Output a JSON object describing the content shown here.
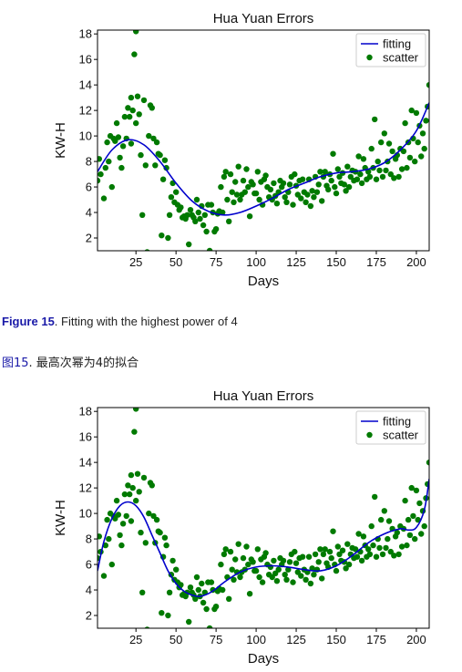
{
  "captions": {
    "en_prefix": "Figure 15",
    "en_text": ". Fitting with the highest power of 4",
    "zh_prefix": "图15",
    "zh_text": ". 最高次幂为4的拟合"
  },
  "chart_data": [
    {
      "type": "scatter",
      "title": "Hua Yuan Errors",
      "xlabel": "Days",
      "ylabel": "KW-H",
      "xlim": [
        1,
        208
      ],
      "ylim": [
        1,
        18.3
      ],
      "xticks": [
        25,
        50,
        75,
        100,
        125,
        150,
        175,
        200
      ],
      "yticks": [
        2,
        4,
        6,
        8,
        10,
        12,
        14,
        16,
        18
      ],
      "legend": {
        "position": "top-right",
        "entries": [
          "fitting",
          "scatter"
        ]
      },
      "colors": {
        "fitting": "#0000cc",
        "scatter": "#007a00"
      },
      "series": [
        {
          "name": "fitting",
          "x": [
            1,
            10,
            20,
            30,
            40,
            50,
            60,
            70,
            80,
            90,
            100,
            110,
            120,
            130,
            140,
            150,
            160,
            170,
            180,
            190,
            200,
            208
          ],
          "y": [
            7.2,
            8.9,
            9.7,
            9.3,
            8.0,
            6.3,
            4.9,
            4.1,
            3.8,
            4.0,
            4.5,
            5.1,
            5.8,
            6.3,
            6.8,
            7.1,
            7.2,
            7.4,
            7.9,
            8.9,
            10.4,
            12.6
          ]
        },
        {
          "name": "scatter",
          "x": [
            1,
            2,
            3,
            5,
            6,
            7,
            8,
            9,
            10,
            11,
            12,
            13,
            14,
            15,
            16,
            17,
            18,
            19,
            20,
            21,
            22,
            22,
            23,
            24,
            25,
            25,
            26,
            27,
            28,
            29,
            30,
            31,
            32,
            33,
            34,
            35,
            36,
            37,
            38,
            39,
            40,
            41,
            42,
            43,
            44,
            45,
            46,
            47,
            48,
            49,
            50,
            51,
            52,
            53,
            54,
            55,
            56,
            57,
            58,
            59,
            60,
            61,
            62,
            63,
            64,
            65,
            66,
            67,
            68,
            69,
            70,
            71,
            72,
            73,
            74,
            75,
            76,
            77,
            78,
            79,
            80,
            81,
            82,
            83,
            84,
            85,
            86,
            87,
            88,
            89,
            90,
            91,
            92,
            93,
            94,
            95,
            96,
            97,
            98,
            99,
            100,
            101,
            102,
            103,
            104,
            105,
            106,
            107,
            108,
            109,
            110,
            111,
            112,
            113,
            114,
            115,
            116,
            117,
            118,
            119,
            120,
            121,
            122,
            123,
            124,
            125,
            126,
            127,
            128,
            129,
            130,
            131,
            132,
            133,
            134,
            135,
            136,
            137,
            138,
            139,
            140,
            141,
            142,
            143,
            144,
            145,
            146,
            147,
            148,
            149,
            150,
            151,
            152,
            153,
            154,
            155,
            156,
            157,
            158,
            159,
            160,
            161,
            162,
            163,
            164,
            165,
            166,
            167,
            168,
            169,
            170,
            171,
            172,
            173,
            174,
            175,
            176,
            177,
            178,
            179,
            180,
            181,
            182,
            183,
            184,
            185,
            186,
            187,
            188,
            189,
            190,
            191,
            192,
            193,
            194,
            195,
            196,
            197,
            198,
            199,
            200,
            201,
            202,
            203,
            204,
            205,
            206,
            207,
            208
          ],
          "y": [
            6.5,
            8.2,
            7.0,
            5.1,
            7.5,
            9.5,
            8.0,
            10.0,
            6.0,
            9.8,
            9.6,
            11.0,
            9.9,
            8.3,
            7.5,
            9.2,
            11.5,
            9.8,
            12.2,
            11.5,
            9.4,
            13.0,
            12.0,
            16.4,
            18.2,
            11.0,
            13.1,
            11.7,
            8.5,
            3.8,
            12.8,
            7.7,
            0.9,
            10.0,
            12.4,
            12.2,
            9.8,
            7.7,
            9.5,
            8.6,
            8.5,
            2.2,
            6.6,
            8.1,
            7.5,
            2.0,
            3.8,
            5.2,
            6.3,
            4.8,
            5.6,
            4.6,
            4.2,
            4.4,
            3.6,
            3.7,
            3.5,
            3.8,
            1.5,
            4.2,
            3.8,
            3.6,
            3.3,
            5.0,
            4.0,
            3.5,
            4.5,
            3.0,
            3.8,
            2.5,
            4.6,
            1.0,
            4.6,
            4.0,
            2.5,
            2.7,
            3.9,
            4.1,
            6.0,
            4.0,
            6.8,
            7.2,
            5.0,
            3.3,
            7.0,
            5.6,
            4.8,
            6.4,
            5.4,
            7.6,
            5.0,
            5.4,
            6.5,
            5.6,
            7.4,
            6.0,
            3.7,
            6.4,
            6.2,
            5.5,
            5.5,
            7.2,
            5.0,
            6.4,
            4.6,
            6.6,
            6.9,
            6.0,
            5.2,
            5.8,
            5.0,
            6.3,
            5.3,
            4.7,
            5.6,
            6.5,
            6.0,
            6.3,
            5.2,
            4.8,
            5.6,
            6.2,
            6.8,
            4.6,
            7.0,
            6.1,
            5.4,
            6.5,
            5.1,
            6.6,
            5.6,
            4.8,
            5.4,
            6.6,
            4.5,
            5.7,
            5.2,
            6.8,
            5.6,
            6.2,
            7.2,
            4.9,
            6.8,
            7.2,
            6.1,
            5.8,
            7.0,
            6.5,
            8.6,
            6.0,
            5.5,
            7.4,
            6.8,
            6.3,
            7.1,
            6.2,
            5.7,
            7.6,
            6.0,
            6.8,
            7.3,
            6.5,
            7.2,
            6.6,
            8.4,
            7.0,
            6.3,
            8.2,
            7.5,
            6.6,
            7.2,
            6.8,
            9.0,
            7.5,
            11.3,
            6.6,
            8.0,
            7.3,
            9.5,
            6.8,
            10.2,
            7.3,
            8.0,
            9.4,
            7.0,
            8.8,
            6.7,
            8.2,
            8.5,
            6.8,
            9.0,
            7.4,
            8.8,
            11.0,
            7.5,
            9.5,
            8.3,
            12.0,
            9.8,
            8.0,
            11.8,
            9.5,
            10.8,
            8.4,
            10.2,
            9.0,
            11.2,
            12.3,
            14.0
          ]
        }
      ]
    },
    {
      "type": "scatter",
      "title": "Hua Yuan Errors",
      "xlabel": "Days",
      "ylabel": "KW-H",
      "xlim": [
        1,
        208
      ],
      "ylim": [
        1,
        18.3
      ],
      "xticks": [
        25,
        50,
        75,
        100,
        125,
        150,
        175,
        200
      ],
      "yticks": [
        2,
        4,
        6,
        8,
        10,
        12,
        14,
        16,
        18
      ],
      "legend": {
        "position": "top-right",
        "entries": [
          "fitting",
          "scatter"
        ]
      },
      "colors": {
        "fitting": "#0000cc",
        "scatter": "#007a00"
      },
      "series": [
        {
          "name": "fitting",
          "x": [
            1,
            5,
            10,
            15,
            20,
            25,
            30,
            35,
            40,
            45,
            50,
            55,
            60,
            65,
            70,
            75,
            80,
            90,
            100,
            110,
            120,
            130,
            140,
            150,
            160,
            170,
            180,
            190,
            195,
            200,
            205,
            208
          ],
          "y": [
            5.5,
            7.8,
            9.6,
            10.6,
            10.9,
            10.6,
            9.7,
            8.3,
            6.9,
            5.5,
            4.5,
            3.9,
            3.6,
            3.5,
            3.7,
            4.1,
            4.6,
            5.4,
            5.8,
            5.9,
            5.8,
            5.6,
            5.5,
            5.9,
            6.7,
            7.7,
            8.4,
            8.8,
            8.7,
            8.9,
            10.3,
            12.7
          ]
        },
        {
          "name": "scatter",
          "x": [
            1,
            2,
            3,
            5,
            6,
            7,
            8,
            9,
            10,
            11,
            12,
            13,
            14,
            15,
            16,
            17,
            18,
            19,
            20,
            21,
            22,
            22,
            23,
            24,
            25,
            25,
            26,
            27,
            28,
            29,
            30,
            31,
            32,
            33,
            34,
            35,
            36,
            37,
            38,
            39,
            40,
            41,
            42,
            43,
            44,
            45,
            46,
            47,
            48,
            49,
            50,
            51,
            52,
            53,
            54,
            55,
            56,
            57,
            58,
            59,
            60,
            61,
            62,
            63,
            64,
            65,
            66,
            67,
            68,
            69,
            70,
            71,
            72,
            73,
            74,
            75,
            76,
            77,
            78,
            79,
            80,
            81,
            82,
            83,
            84,
            85,
            86,
            87,
            88,
            89,
            90,
            91,
            92,
            93,
            94,
            95,
            96,
            97,
            98,
            99,
            100,
            101,
            102,
            103,
            104,
            105,
            106,
            107,
            108,
            109,
            110,
            111,
            112,
            113,
            114,
            115,
            116,
            117,
            118,
            119,
            120,
            121,
            122,
            123,
            124,
            125,
            126,
            127,
            128,
            129,
            130,
            131,
            132,
            133,
            134,
            135,
            136,
            137,
            138,
            139,
            140,
            141,
            142,
            143,
            144,
            145,
            146,
            147,
            148,
            149,
            150,
            151,
            152,
            153,
            154,
            155,
            156,
            157,
            158,
            159,
            160,
            161,
            162,
            163,
            164,
            165,
            166,
            167,
            168,
            169,
            170,
            171,
            172,
            173,
            174,
            175,
            176,
            177,
            178,
            179,
            180,
            181,
            182,
            183,
            184,
            185,
            186,
            187,
            188,
            189,
            190,
            191,
            192,
            193,
            194,
            195,
            196,
            197,
            198,
            199,
            200,
            201,
            202,
            203,
            204,
            205,
            206,
            207,
            208
          ],
          "y": [
            6.5,
            8.2,
            7.0,
            5.1,
            7.5,
            9.5,
            8.0,
            10.0,
            6.0,
            9.8,
            9.6,
            11.0,
            9.9,
            8.3,
            7.5,
            9.2,
            11.5,
            9.8,
            12.2,
            11.5,
            9.4,
            13.0,
            12.0,
            16.4,
            18.2,
            11.0,
            13.1,
            11.7,
            8.5,
            3.8,
            12.8,
            7.7,
            0.9,
            10.0,
            12.4,
            12.2,
            9.8,
            7.7,
            9.5,
            8.6,
            8.5,
            2.2,
            6.6,
            8.1,
            7.5,
            2.0,
            3.8,
            5.2,
            6.3,
            4.8,
            5.6,
            4.6,
            4.2,
            4.4,
            3.6,
            3.7,
            3.5,
            3.8,
            1.5,
            4.2,
            3.8,
            3.6,
            3.3,
            5.0,
            4.0,
            3.5,
            4.5,
            3.0,
            3.8,
            2.5,
            4.6,
            1.0,
            4.6,
            4.0,
            2.5,
            2.7,
            3.9,
            4.1,
            6.0,
            4.0,
            6.8,
            7.2,
            5.0,
            3.3,
            7.0,
            5.6,
            4.8,
            6.4,
            5.4,
            7.6,
            5.0,
            5.4,
            6.5,
            5.6,
            7.4,
            6.0,
            3.7,
            6.4,
            6.2,
            5.5,
            5.5,
            7.2,
            5.0,
            6.4,
            4.6,
            6.6,
            6.9,
            6.0,
            5.2,
            5.8,
            5.0,
            6.3,
            5.3,
            4.7,
            5.6,
            6.5,
            6.0,
            6.3,
            5.2,
            4.8,
            5.6,
            6.2,
            6.8,
            4.6,
            7.0,
            6.1,
            5.4,
            6.5,
            5.1,
            6.6,
            5.6,
            4.8,
            5.4,
            6.6,
            4.5,
            5.7,
            5.2,
            6.8,
            5.6,
            6.2,
            7.2,
            4.9,
            6.8,
            7.2,
            6.1,
            5.8,
            7.0,
            6.5,
            8.6,
            6.0,
            5.5,
            7.4,
            6.8,
            6.3,
            7.1,
            6.2,
            5.7,
            7.6,
            6.0,
            6.8,
            7.3,
            6.5,
            7.2,
            6.6,
            8.4,
            7.0,
            6.3,
            8.2,
            7.5,
            6.6,
            7.2,
            6.8,
            9.0,
            7.5,
            11.3,
            6.6,
            8.0,
            7.3,
            9.5,
            6.8,
            10.2,
            7.3,
            8.0,
            9.4,
            7.0,
            8.8,
            6.7,
            8.2,
            8.5,
            6.8,
            9.0,
            7.4,
            8.8,
            11.0,
            7.5,
            9.5,
            8.3,
            12.0,
            9.8,
            8.0,
            11.8,
            9.5,
            10.8,
            8.4,
            10.2,
            9.0,
            11.2,
            12.3,
            14.0
          ]
        }
      ]
    }
  ]
}
